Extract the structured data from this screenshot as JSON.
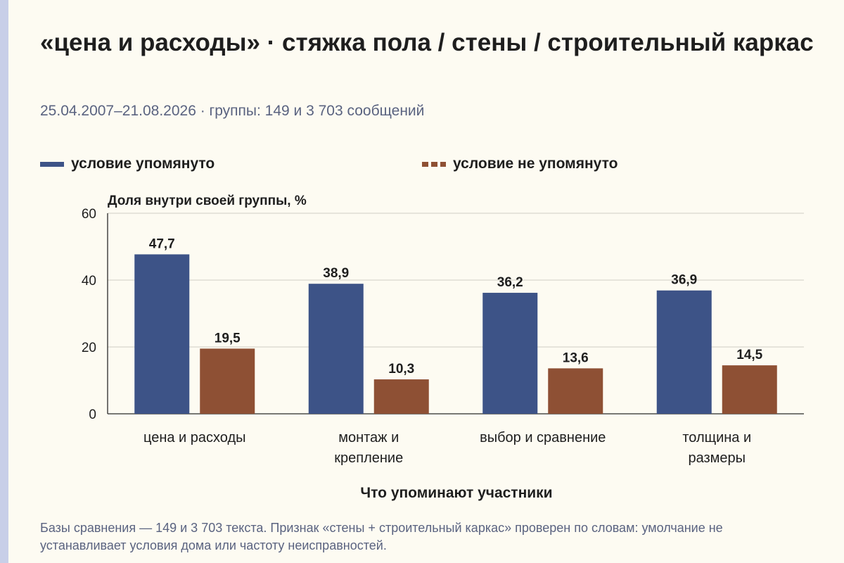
{
  "header": {
    "title": "«цена и расходы» · стяжка пола / стены / строительный каркас",
    "subtitle": "25.04.2007–21.08.2026 · группы: 149 и 3 703 сообщений"
  },
  "footer": {
    "note": "Базы сравнения — 149 и 3 703 текста. Признак «стены + строительный каркас» проверен по словам: умолчание не устанавливает условия дома или частоту неисправностей."
  },
  "colors": {
    "mentioned": "#3d5387",
    "not_mentioned": "#8e5034",
    "background": "#fdfbf2"
  },
  "chart_data": {
    "type": "bar",
    "title": "«цена и расходы» · стяжка пола / стены / строительный каркас",
    "ylabel": "Доля внутри своей группы, %",
    "xlabel": "Что упоминают участники",
    "ylim": [
      0,
      60
    ],
    "yticks": [
      0,
      20,
      40,
      60
    ],
    "grid": true,
    "legend_position": "top",
    "categories": [
      "цена и расходы",
      "монтаж и крепление",
      "выбор и сравнение",
      "толщина и размеры"
    ],
    "category_lines": [
      [
        "цена и расходы"
      ],
      [
        "монтаж и",
        "крепление"
      ],
      [
        "выбор и сравнение"
      ],
      [
        "толщина и",
        "размеры"
      ]
    ],
    "series": [
      {
        "name": "условие упомянуто",
        "values": [
          47.7,
          38.9,
          36.2,
          36.9
        ],
        "labels": [
          "47,7",
          "38,9",
          "36,2",
          "36,9"
        ]
      },
      {
        "name": "условие не упомянуто",
        "values": [
          19.5,
          10.3,
          13.6,
          14.5
        ],
        "labels": [
          "19,5",
          "10,3",
          "13,6",
          "14,5"
        ]
      }
    ]
  }
}
